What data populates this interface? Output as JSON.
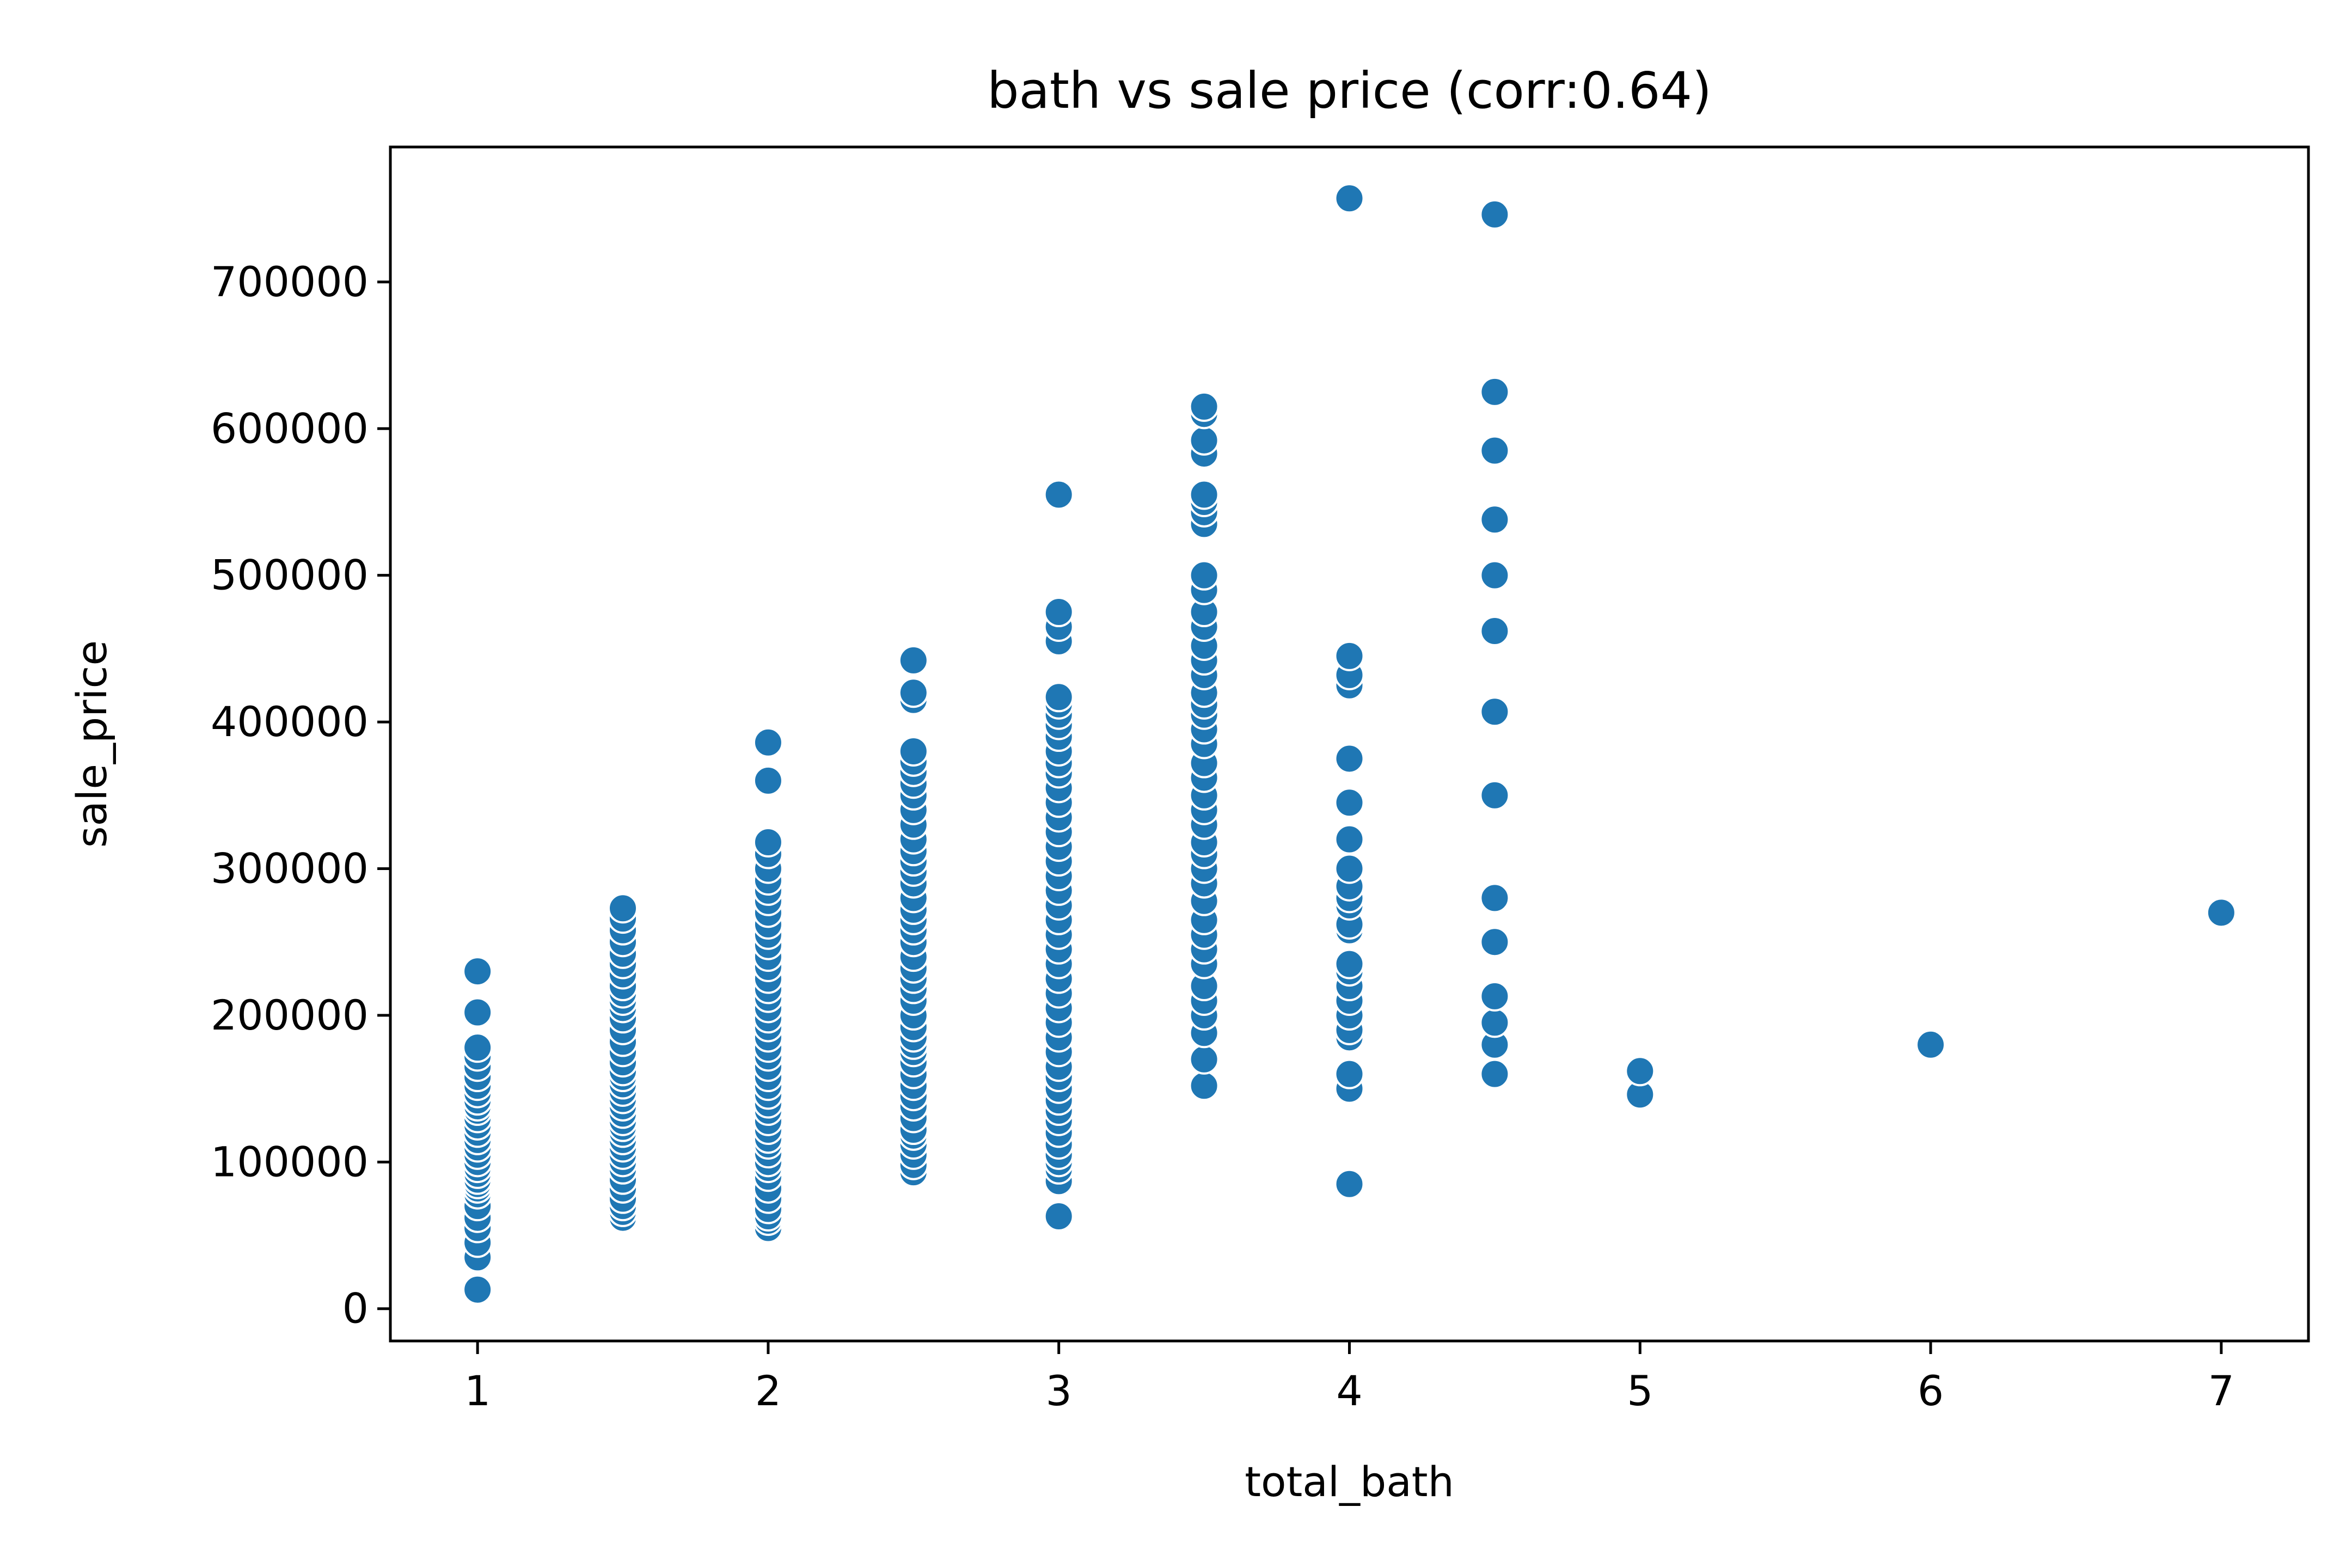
{
  "chart_data": {
    "type": "scatter",
    "title": "bath vs sale price (corr:0.64)",
    "xlabel": "total_bath",
    "ylabel": "sale_price",
    "xlim": [
      0.7,
      7.3
    ],
    "ylim": [
      -22000,
      792000
    ],
    "xticks": [
      1,
      2,
      3,
      4,
      5,
      6,
      7
    ],
    "yticks": [
      0,
      100000,
      200000,
      300000,
      400000,
      500000,
      600000,
      700000
    ],
    "xtick_labels": [
      "1",
      "2",
      "3",
      "4",
      "5",
      "6",
      "7"
    ],
    "ytick_labels": [
      "0",
      "100000",
      "200000",
      "300000",
      "400000",
      "500000",
      "600000",
      "700000"
    ],
    "grid": false,
    "color": "#1f77b4",
    "series": [
      {
        "points": [
          [
            1,
            13000
          ],
          [
            1,
            35000
          ],
          [
            1,
            45000
          ],
          [
            1,
            55000
          ],
          [
            1,
            62000
          ],
          [
            1,
            70000
          ],
          [
            1,
            78000
          ],
          [
            1,
            82000
          ],
          [
            1,
            85000
          ],
          [
            1,
            88000
          ],
          [
            1,
            92000
          ],
          [
            1,
            96000
          ],
          [
            1,
            100000
          ],
          [
            1,
            105000
          ],
          [
            1,
            110000
          ],
          [
            1,
            115000
          ],
          [
            1,
            120000
          ],
          [
            1,
            125000
          ],
          [
            1,
            130000
          ],
          [
            1,
            135000
          ],
          [
            1,
            138000
          ],
          [
            1,
            142000
          ],
          [
            1,
            147000
          ],
          [
            1,
            152000
          ],
          [
            1,
            158000
          ],
          [
            1,
            165000
          ],
          [
            1,
            172000
          ],
          [
            1,
            178000
          ],
          [
            1,
            202000
          ],
          [
            1,
            230000
          ],
          [
            1.5,
            62000
          ],
          [
            1.5,
            66000
          ],
          [
            1.5,
            70000
          ],
          [
            1.5,
            75000
          ],
          [
            1.5,
            82000
          ],
          [
            1.5,
            88000
          ],
          [
            1.5,
            95000
          ],
          [
            1.5,
            100000
          ],
          [
            1.5,
            105000
          ],
          [
            1.5,
            110000
          ],
          [
            1.5,
            115000
          ],
          [
            1.5,
            120000
          ],
          [
            1.5,
            124000
          ],
          [
            1.5,
            128000
          ],
          [
            1.5,
            133000
          ],
          [
            1.5,
            138000
          ],
          [
            1.5,
            143000
          ],
          [
            1.5,
            148000
          ],
          [
            1.5,
            153000
          ],
          [
            1.5,
            158000
          ],
          [
            1.5,
            162000
          ],
          [
            1.5,
            168000
          ],
          [
            1.5,
            175000
          ],
          [
            1.5,
            182000
          ],
          [
            1.5,
            190000
          ],
          [
            1.5,
            198000
          ],
          [
            1.5,
            205000
          ],
          [
            1.5,
            210000
          ],
          [
            1.5,
            215000
          ],
          [
            1.5,
            220000
          ],
          [
            1.5,
            228000
          ],
          [
            1.5,
            235000
          ],
          [
            1.5,
            242000
          ],
          [
            1.5,
            250000
          ],
          [
            1.5,
            258000
          ],
          [
            1.5,
            266000
          ],
          [
            1.5,
            273000
          ],
          [
            2,
            55000
          ],
          [
            2,
            60000
          ],
          [
            2,
            63000
          ],
          [
            2,
            68000
          ],
          [
            2,
            75000
          ],
          [
            2,
            82000
          ],
          [
            2,
            90000
          ],
          [
            2,
            96000
          ],
          [
            2,
            100000
          ],
          [
            2,
            106000
          ],
          [
            2,
            112000
          ],
          [
            2,
            116000
          ],
          [
            2,
            122000
          ],
          [
            2,
            128000
          ],
          [
            2,
            135000
          ],
          [
            2,
            140000
          ],
          [
            2,
            146000
          ],
          [
            2,
            152000
          ],
          [
            2,
            158000
          ],
          [
            2,
            165000
          ],
          [
            2,
            172000
          ],
          [
            2,
            178000
          ],
          [
            2,
            185000
          ],
          [
            2,
            192000
          ],
          [
            2,
            198000
          ],
          [
            2,
            205000
          ],
          [
            2,
            212000
          ],
          [
            2,
            218000
          ],
          [
            2,
            225000
          ],
          [
            2,
            233000
          ],
          [
            2,
            240000
          ],
          [
            2,
            248000
          ],
          [
            2,
            255000
          ],
          [
            2,
            262000
          ],
          [
            2,
            270000
          ],
          [
            2,
            278000
          ],
          [
            2,
            285000
          ],
          [
            2,
            292000
          ],
          [
            2,
            300000
          ],
          [
            2,
            310000
          ],
          [
            2,
            318000
          ],
          [
            2,
            360000
          ],
          [
            2,
            386000
          ],
          [
            2.5,
            93000
          ],
          [
            2.5,
            98000
          ],
          [
            2.5,
            105000
          ],
          [
            2.5,
            112000
          ],
          [
            2.5,
            118000
          ],
          [
            2.5,
            122000
          ],
          [
            2.5,
            130000
          ],
          [
            2.5,
            138000
          ],
          [
            2.5,
            145000
          ],
          [
            2.5,
            152000
          ],
          [
            2.5,
            160000
          ],
          [
            2.5,
            168000
          ],
          [
            2.5,
            175000
          ],
          [
            2.5,
            180000
          ],
          [
            2.5,
            185000
          ],
          [
            2.5,
            192000
          ],
          [
            2.5,
            200000
          ],
          [
            2.5,
            210000
          ],
          [
            2.5,
            218000
          ],
          [
            2.5,
            225000
          ],
          [
            2.5,
            232000
          ],
          [
            2.5,
            240000
          ],
          [
            2.5,
            250000
          ],
          [
            2.5,
            258000
          ],
          [
            2.5,
            265000
          ],
          [
            2.5,
            272000
          ],
          [
            2.5,
            280000
          ],
          [
            2.5,
            290000
          ],
          [
            2.5,
            298000
          ],
          [
            2.5,
            305000
          ],
          [
            2.5,
            312000
          ],
          [
            2.5,
            320000
          ],
          [
            2.5,
            330000
          ],
          [
            2.5,
            340000
          ],
          [
            2.5,
            350000
          ],
          [
            2.5,
            358000
          ],
          [
            2.5,
            366000
          ],
          [
            2.5,
            373000
          ],
          [
            2.5,
            380000
          ],
          [
            2.5,
            415000
          ],
          [
            2.5,
            420000
          ],
          [
            2.5,
            442000
          ],
          [
            3,
            63000
          ],
          [
            3,
            87000
          ],
          [
            3,
            95000
          ],
          [
            3,
            100000
          ],
          [
            3,
            105000
          ],
          [
            3,
            112000
          ],
          [
            3,
            120000
          ],
          [
            3,
            128000
          ],
          [
            3,
            135000
          ],
          [
            3,
            142000
          ],
          [
            3,
            150000
          ],
          [
            3,
            158000
          ],
          [
            3,
            165000
          ],
          [
            3,
            175000
          ],
          [
            3,
            185000
          ],
          [
            3,
            195000
          ],
          [
            3,
            205000
          ],
          [
            3,
            215000
          ],
          [
            3,
            225000
          ],
          [
            3,
            235000
          ],
          [
            3,
            245000
          ],
          [
            3,
            255000
          ],
          [
            3,
            265000
          ],
          [
            3,
            275000
          ],
          [
            3,
            285000
          ],
          [
            3,
            295000
          ],
          [
            3,
            305000
          ],
          [
            3,
            315000
          ],
          [
            3,
            325000
          ],
          [
            3,
            335000
          ],
          [
            3,
            345000
          ],
          [
            3,
            355000
          ],
          [
            3,
            365000
          ],
          [
            3,
            372000
          ],
          [
            3,
            380000
          ],
          [
            3,
            390000
          ],
          [
            3,
            398000
          ],
          [
            3,
            405000
          ],
          [
            3,
            412000
          ],
          [
            3,
            417000
          ],
          [
            3,
            455000
          ],
          [
            3,
            465000
          ],
          [
            3,
            475000
          ],
          [
            3,
            555000
          ],
          [
            3.5,
            152000
          ],
          [
            3.5,
            170000
          ],
          [
            3.5,
            188000
          ],
          [
            3.5,
            200000
          ],
          [
            3.5,
            210000
          ],
          [
            3.5,
            220000
          ],
          [
            3.5,
            235000
          ],
          [
            3.5,
            245000
          ],
          [
            3.5,
            255000
          ],
          [
            3.5,
            265000
          ],
          [
            3.5,
            278000
          ],
          [
            3.5,
            290000
          ],
          [
            3.5,
            300000
          ],
          [
            3.5,
            310000
          ],
          [
            3.5,
            318000
          ],
          [
            3.5,
            330000
          ],
          [
            3.5,
            340000
          ],
          [
            3.5,
            350000
          ],
          [
            3.5,
            362000
          ],
          [
            3.5,
            372000
          ],
          [
            3.5,
            385000
          ],
          [
            3.5,
            395000
          ],
          [
            3.5,
            405000
          ],
          [
            3.5,
            412000
          ],
          [
            3.5,
            420000
          ],
          [
            3.5,
            432000
          ],
          [
            3.5,
            442000
          ],
          [
            3.5,
            452000
          ],
          [
            3.5,
            465000
          ],
          [
            3.5,
            475000
          ],
          [
            3.5,
            490000
          ],
          [
            3.5,
            500000
          ],
          [
            3.5,
            535000
          ],
          [
            3.5,
            543000
          ],
          [
            3.5,
            550000
          ],
          [
            3.5,
            555000
          ],
          [
            3.5,
            583000
          ],
          [
            3.5,
            592000
          ],
          [
            3.5,
            610000
          ],
          [
            3.5,
            615000
          ],
          [
            4,
            85000
          ],
          [
            4,
            150000
          ],
          [
            4,
            160000
          ],
          [
            4,
            185000
          ],
          [
            4,
            190000
          ],
          [
            4,
            200000
          ],
          [
            4,
            210000
          ],
          [
            4,
            220000
          ],
          [
            4,
            230000
          ],
          [
            4,
            235000
          ],
          [
            4,
            258000
          ],
          [
            4,
            262000
          ],
          [
            4,
            275000
          ],
          [
            4,
            280000
          ],
          [
            4,
            288000
          ],
          [
            4,
            300000
          ],
          [
            4,
            320000
          ],
          [
            4,
            345000
          ],
          [
            4,
            375000
          ],
          [
            4,
            425000
          ],
          [
            4,
            432000
          ],
          [
            4,
            445000
          ],
          [
            4,
            757000
          ],
          [
            4.5,
            160000
          ],
          [
            4.5,
            180000
          ],
          [
            4.5,
            195000
          ],
          [
            4.5,
            213000
          ],
          [
            4.5,
            250000
          ],
          [
            4.5,
            280000
          ],
          [
            4.5,
            350000
          ],
          [
            4.5,
            407000
          ],
          [
            4.5,
            462000
          ],
          [
            4.5,
            500000
          ],
          [
            4.5,
            538000
          ],
          [
            4.5,
            585000
          ],
          [
            4.5,
            625000
          ],
          [
            4.5,
            746000
          ],
          [
            5,
            146000
          ],
          [
            5,
            162000
          ],
          [
            6,
            180000
          ],
          [
            7,
            270000
          ]
        ]
      }
    ]
  }
}
